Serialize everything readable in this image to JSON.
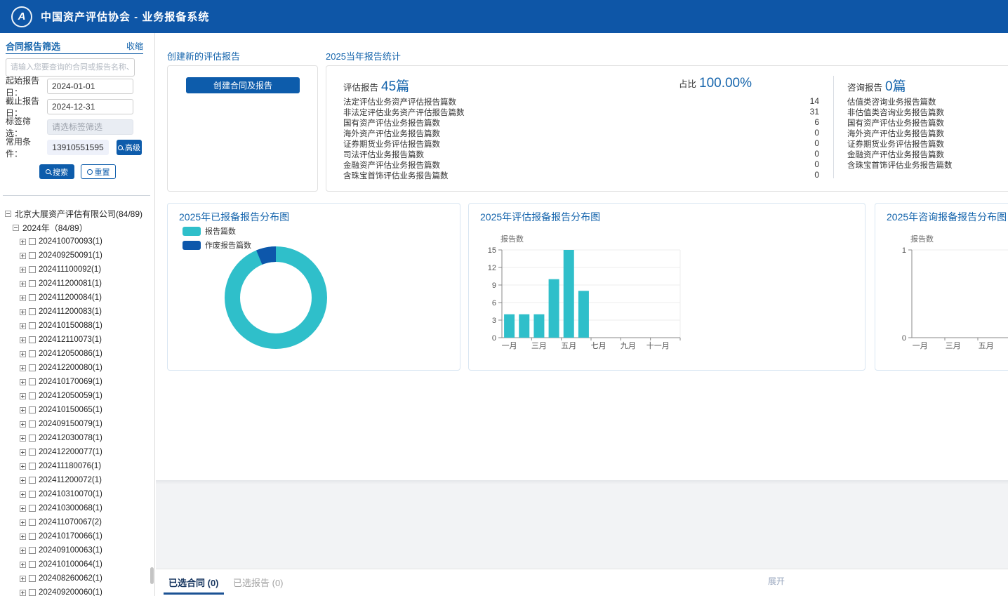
{
  "header": {
    "title": "中国资产评估协会 - 业务报备系统",
    "logo_glyph": "A"
  },
  "colors": {
    "header_bg": "#0e56a7",
    "accent_blue": "#1464ac",
    "button_blue": "#0d5cab",
    "teal": "#2fbfca",
    "dark_blue": "#0d57ab"
  },
  "sidebar": {
    "filter": {
      "title": "合同报告筛选",
      "collapse_label": "收缩",
      "search_placeholder": "请输入您要查询的合同或报告名称、编码",
      "start_label": "起始报告日：",
      "start_value": "2024-01-01",
      "end_label": "截止报告日：",
      "end_value": "2024-12-31",
      "tag_label": "标签筛选：",
      "tag_placeholder": "请选标签筛选",
      "fav_label": "常用条件：",
      "fav_value": "13910551595",
      "advanced_button": "高级",
      "search_button": "搜索",
      "reset_button": "重置"
    },
    "tree": {
      "root": "北京大展资产评估有限公司(84/89)",
      "year": "2024年（84/89）",
      "items": [
        "202410070093(1)",
        "202409250091(1)",
        "202411100092(1)",
        "202411200081(1)",
        "202411200084(1)",
        "202411200083(1)",
        "202410150088(1)",
        "202412110073(1)",
        "202412050086(1)",
        "202412200080(1)",
        "202410170069(1)",
        "202412050059(1)",
        "202410150065(1)",
        "202409150079(1)",
        "202412030078(1)",
        "202412200077(1)",
        "202411180076(1)",
        "202411200072(1)",
        "202410310070(1)",
        "202410300068(1)",
        "202411070067(2)",
        "202410170066(1)",
        "202409100063(1)",
        "202410100064(1)",
        "202408260062(1)",
        "202409200060(1)"
      ]
    }
  },
  "main": {
    "create_section": {
      "title": "创建新的评估报告",
      "button": "创建合同及报告"
    },
    "stats": {
      "title": "2025当年报告统计",
      "eval_label": "评估报告",
      "eval_count": "45篇",
      "ratio_label": "占比",
      "ratio_value": "100.00%",
      "consult_label": "咨询报告",
      "consult_count": "0篇",
      "eval_rows": [
        {
          "label": "法定评估业务资产评估报告篇数",
          "value": "14"
        },
        {
          "label": "非法定评估业务资产评估报告篇数",
          "value": "31"
        },
        {
          "label": "国有资产评估业务报告篇数",
          "value": "6"
        },
        {
          "label": "海外资产评估业务报告篇数",
          "value": "0"
        },
        {
          "label": "证券期货业务评估报告篇数",
          "value": "0"
        },
        {
          "label": "司法评估业务报告篇数",
          "value": "0"
        },
        {
          "label": "金融资产评估业务报告篇数",
          "value": "0"
        },
        {
          "label": "含珠宝首饰评估业务报告篇数",
          "value": "0"
        }
      ],
      "consult_rows": [
        {
          "label": "估值类咨询业务报告篇数"
        },
        {
          "label": "非估值类咨询业务报告篇数"
        },
        {
          "label": "国有资产评估业务报告篇数"
        },
        {
          "label": "海外资产评估业务报告篇数"
        },
        {
          "label": "证券期货业务评估报告篇数"
        },
        {
          "label": "金融资产评估业务报告篇数"
        },
        {
          "label": "含珠宝首饰评估业务报告篇数"
        }
      ]
    }
  },
  "chart_data": [
    {
      "type": "pie",
      "title": "2025年已报备报告分布图",
      "donut": true,
      "legend_position": "top-left",
      "series": [
        {
          "name": "报告篇数",
          "value": 45,
          "color": "#2fbfca"
        },
        {
          "name": "作废报告篇数",
          "value": 3,
          "color": "#0d57ab"
        }
      ]
    },
    {
      "type": "bar",
      "title": "2025年评估报备报告分布图",
      "ylabel": "报告数",
      "categories": [
        "一月",
        "二月",
        "三月",
        "四月",
        "五月",
        "六月",
        "七月",
        "八月",
        "九月",
        "十月",
        "十一月",
        "十二月"
      ],
      "x_tick_labels": [
        "一月",
        "三月",
        "五月",
        "七月",
        "九月",
        "十一月"
      ],
      "values": [
        4,
        4,
        4,
        10,
        15,
        8,
        0,
        0,
        0,
        0,
        0,
        0
      ],
      "ylim": [
        0,
        15
      ],
      "yticks": [
        0,
        3,
        6,
        9,
        12,
        15
      ],
      "grid": true,
      "color": "#2fbfca"
    },
    {
      "type": "bar",
      "title": "2025年咨询报备报告分布图",
      "ylabel": "报告数",
      "categories": [
        "一月",
        "二月",
        "三月",
        "四月",
        "五月",
        "六月",
        "七月",
        "八月",
        "九月",
        "十月",
        "十一月",
        "十二月"
      ],
      "x_tick_labels": [
        "一月",
        "三月",
        "五月"
      ],
      "values": [
        0,
        0,
        0,
        0,
        0,
        0,
        0,
        0,
        0,
        0,
        0,
        0
      ],
      "ylim": [
        0,
        1
      ],
      "yticks": [
        0,
        1
      ],
      "grid": true,
      "color": "#2fbfca"
    }
  ],
  "bottom_bar": {
    "tabs": [
      {
        "label": "已选合同 (0)"
      },
      {
        "label": "已选报告 (0)"
      }
    ],
    "expand_label": "展开"
  }
}
